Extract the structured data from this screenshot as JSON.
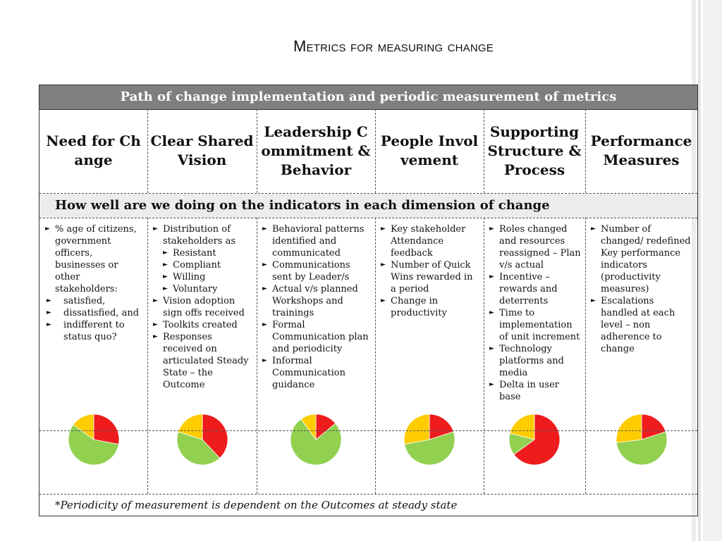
{
  "title": "Metrics for measuring change",
  "table": {
    "header": "Path of change implementation and periodic measurement of metrics",
    "dimensions": [
      "Need for Change",
      "Clear Shared Vision",
      "Leadership Commitment & Behavior",
      "People Involvement",
      "Supporting Structure & Process",
      "Performance Measures"
    ],
    "indicator_question": "How well are we doing on the indicators in each dimension of change",
    "col1": {
      "intro": "% age of citizens, government officers, businesses or other stakeholders:",
      "items": [
        "satisfied,",
        "dissatisfied, and",
        "indifferent to status quo?"
      ]
    },
    "col2": {
      "item1": "Distribution of stakeholders as",
      "sub": [
        "Resistant",
        "Compliant",
        "Willing",
        "Voluntary"
      ],
      "rest": [
        "Vision adoption sign offs received",
        "Toolkits created",
        "Responses received on articulated Steady State – the Outcome"
      ]
    },
    "col3": [
      "Behavioral patterns identified and communicated",
      "Communications sent by Leader/s",
      "Actual v/s planned Workshops and trainings",
      "Formal Communication plan and periodicity",
      "Informal Communication guidance"
    ],
    "col4": [
      "Key stakeholder Attendance feedback",
      "Number of Quick Wins rewarded in a period",
      "Change in productivity"
    ],
    "col5": [
      "Roles changed and resources reassigned – Plan v/s actual",
      "Incentive – rewards and deterrents",
      "Time to implementation of unit increment",
      "Technology platforms and media",
      "Delta in user base"
    ],
    "col6": [
      "Number of changed/ redefined Key performance indicators (productivity measures)",
      "Escalations handled at each level – non adherence to change"
    ],
    "footnote": "*Periodicity of measurement is dependent on the Outcomes at steady state"
  },
  "colors": {
    "red": "#ee1c1c",
    "yellow": "#ffcc00",
    "green": "#92d050",
    "header_gray": "#7f7f7f"
  },
  "pies": [
    {
      "red": 0.28,
      "green": 0.57,
      "yellow": 0.15
    },
    {
      "red": 0.38,
      "green": 0.42,
      "yellow": 0.2
    },
    {
      "red": 0.14,
      "green": 0.76,
      "yellow": 0.1
    },
    {
      "red": 0.2,
      "green": 0.52,
      "yellow": 0.28
    },
    {
      "red": 0.65,
      "green": 0.14,
      "yellow": 0.21
    },
    {
      "red": 0.2,
      "green": 0.53,
      "yellow": 0.27
    }
  ]
}
